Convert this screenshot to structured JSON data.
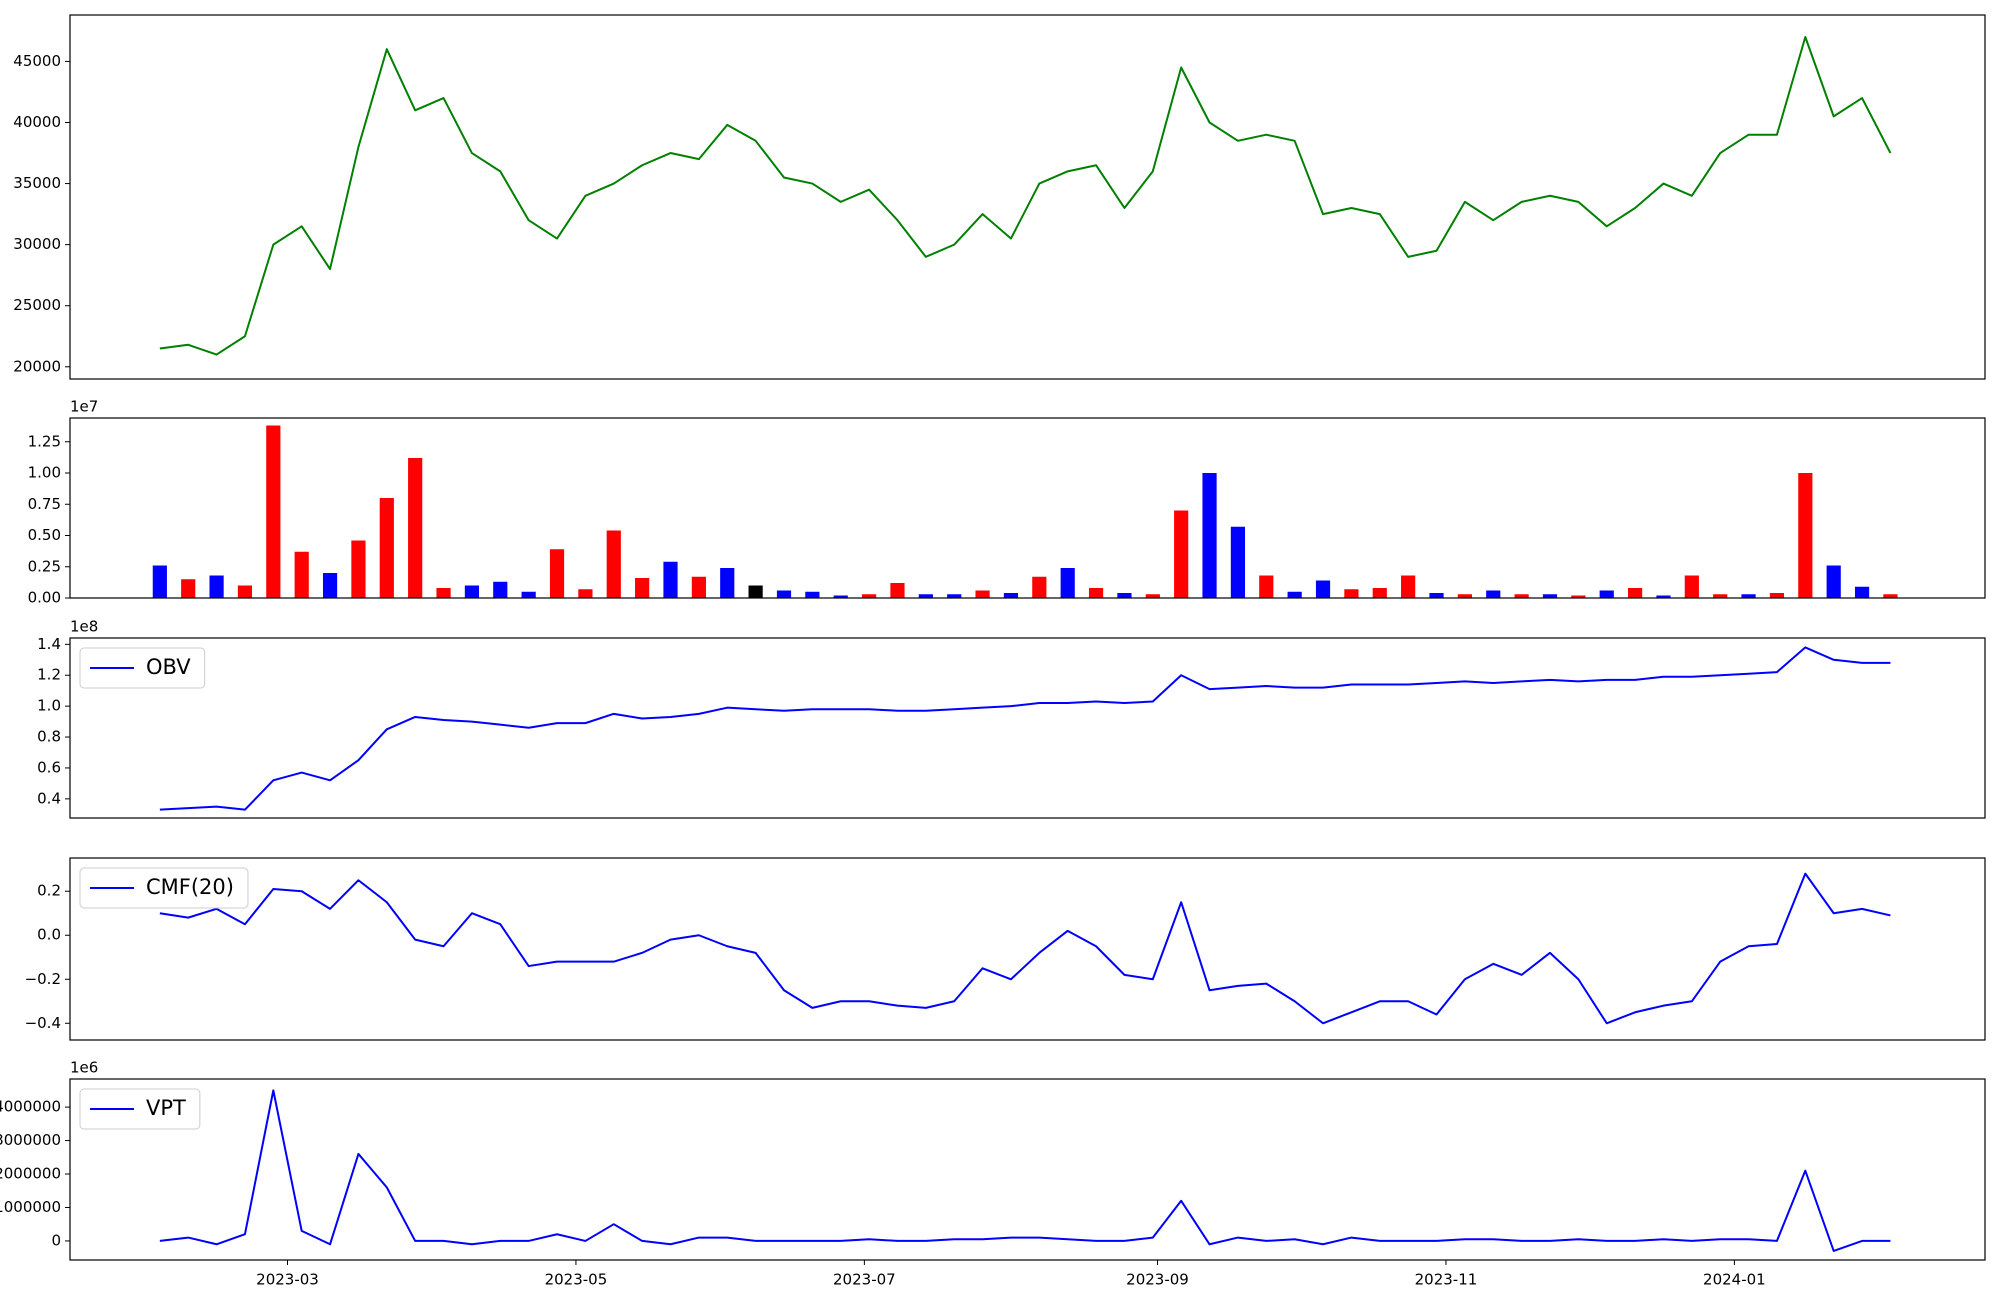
{
  "chart_data": [
    {
      "type": "line",
      "x": [
        "2023-02-02",
        "2023-02-08",
        "2023-02-14",
        "2023-02-20",
        "2023-02-26",
        "2023-03-04",
        "2023-03-10",
        "2023-03-16",
        "2023-03-22",
        "2023-03-28",
        "2023-04-03",
        "2023-04-09",
        "2023-04-15",
        "2023-04-21",
        "2023-04-27",
        "2023-05-03",
        "2023-05-09",
        "2023-05-15",
        "2023-05-21",
        "2023-05-27",
        "2023-06-02",
        "2023-06-08",
        "2023-06-14",
        "2023-06-20",
        "2023-06-26",
        "2023-07-02",
        "2023-07-08",
        "2023-07-14",
        "2023-07-20",
        "2023-07-26",
        "2023-08-01",
        "2023-08-07",
        "2023-08-13",
        "2023-08-19",
        "2023-08-25",
        "2023-08-31",
        "2023-09-06",
        "2023-09-12",
        "2023-09-18",
        "2023-09-24",
        "2023-09-30",
        "2023-10-06",
        "2023-10-12",
        "2023-10-18",
        "2023-10-24",
        "2023-10-30",
        "2023-11-05",
        "2023-11-11",
        "2023-11-17",
        "2023-11-23",
        "2023-11-29",
        "2023-12-05",
        "2023-12-11",
        "2023-12-17",
        "2023-12-23",
        "2023-12-29",
        "2024-01-04",
        "2024-01-10",
        "2024-01-16",
        "2024-01-22",
        "2024-01-28",
        "2024-02-03"
      ],
      "series": [
        {
          "color": "green",
          "values": [
            21500,
            21800,
            21000,
            22500,
            30000,
            31500,
            28000,
            38000,
            46000,
            41000,
            42000,
            37500,
            36000,
            32000,
            30500,
            34000,
            35000,
            36500,
            37500,
            37000,
            39800,
            38500,
            35500,
            35000,
            33500,
            34500,
            32000,
            29000,
            30000,
            32500,
            30500,
            35000,
            36000,
            36500,
            33000,
            36000,
            44500,
            40000,
            38500,
            39000,
            38500,
            32500,
            33000,
            32500,
            29000,
            29500,
            33500,
            32000,
            33500,
            34000,
            33500,
            31500,
            33000,
            35000,
            34000,
            37500,
            39000,
            39000,
            47000,
            40500,
            42000,
            37500
          ]
        }
      ],
      "xlim": [
        "2023-01-14",
        "2024-02-23"
      ],
      "ylim": [
        19000,
        48800
      ],
      "yticks": [
        20000,
        25000,
        30000,
        35000,
        40000,
        45000
      ]
    },
    {
      "type": "bar",
      "x": [
        "2023-02-02",
        "2023-02-08",
        "2023-02-14",
        "2023-02-20",
        "2023-02-26",
        "2023-03-04",
        "2023-03-10",
        "2023-03-16",
        "2023-03-22",
        "2023-03-28",
        "2023-04-03",
        "2023-04-09",
        "2023-04-15",
        "2023-04-21",
        "2023-04-27",
        "2023-05-03",
        "2023-05-09",
        "2023-05-15",
        "2023-05-21",
        "2023-05-27",
        "2023-06-02",
        "2023-06-08",
        "2023-06-14",
        "2023-06-20",
        "2023-06-26",
        "2023-07-02",
        "2023-07-08",
        "2023-07-14",
        "2023-07-20",
        "2023-07-26",
        "2023-08-01",
        "2023-08-07",
        "2023-08-13",
        "2023-08-19",
        "2023-08-25",
        "2023-08-31",
        "2023-09-06",
        "2023-09-12",
        "2023-09-18",
        "2023-09-24",
        "2023-09-30",
        "2023-10-06",
        "2023-10-12",
        "2023-10-18",
        "2023-10-24",
        "2023-10-30",
        "2023-11-05",
        "2023-11-11",
        "2023-11-17",
        "2023-11-23",
        "2023-11-29",
        "2023-12-05",
        "2023-12-11",
        "2023-12-17",
        "2023-12-23",
        "2023-12-29",
        "2024-01-04",
        "2024-01-10",
        "2024-01-16",
        "2024-01-22",
        "2024-01-28",
        "2024-02-03"
      ],
      "series": [
        {
          "values": [
            2600000,
            1500000,
            1800000,
            1000000,
            13800000,
            3700000,
            2000000,
            4600000,
            8000000,
            11200000,
            800000,
            1000000,
            1300000,
            500000,
            3900000,
            700000,
            5400000,
            1600000,
            2900000,
            1700000,
            2400000,
            1000000,
            600000,
            500000,
            200000,
            300000,
            1200000,
            300000,
            300000,
            600000,
            400000,
            1700000,
            2400000,
            800000,
            400000,
            300000,
            7000000,
            10000000,
            5700000,
            1800000,
            500000,
            1400000,
            700000,
            800000,
            1800000,
            400000,
            300000,
            600000,
            300000,
            300000,
            200000,
            600000,
            800000,
            200000,
            1800000,
            300000,
            300000,
            400000,
            10000000,
            2600000,
            900000,
            300000
          ],
          "colors": [
            "blue",
            "red",
            "blue",
            "red",
            "red",
            "red",
            "blue",
            "red",
            "red",
            "red",
            "red",
            "blue",
            "blue",
            "blue",
            "red",
            "red",
            "red",
            "red",
            "blue",
            "red",
            "blue",
            "black",
            "blue",
            "blue",
            "blue",
            "red",
            "red",
            "blue",
            "blue",
            "red",
            "blue",
            "red",
            "blue",
            "red",
            "blue",
            "red",
            "red",
            "blue",
            "blue",
            "red",
            "blue",
            "blue",
            "red",
            "red",
            "red",
            "blue",
            "red",
            "blue",
            "red",
            "blue",
            "red",
            "blue",
            "red",
            "blue",
            "red",
            "red",
            "blue",
            "red",
            "red",
            "blue",
            "blue",
            "red"
          ]
        }
      ],
      "xlim": [
        "2023-01-14",
        "2024-02-23"
      ],
      "ylim": [
        0,
        14400000
      ],
      "yticks": [
        {
          "value": 0,
          "label": "0.00"
        },
        {
          "value": 2500000,
          "label": "0.25"
        },
        {
          "value": 5000000,
          "label": "0.50"
        },
        {
          "value": 7500000,
          "label": "0.75"
        },
        {
          "value": 10000000,
          "label": "1.00"
        },
        {
          "value": 12500000,
          "label": "1.25"
        }
      ],
      "offset_label": "1e7"
    },
    {
      "type": "line",
      "x": [
        "2023-02-02",
        "2023-02-08",
        "2023-02-14",
        "2023-02-20",
        "2023-02-26",
        "2023-03-04",
        "2023-03-10",
        "2023-03-16",
        "2023-03-22",
        "2023-03-28",
        "2023-04-03",
        "2023-04-09",
        "2023-04-15",
        "2023-04-21",
        "2023-04-27",
        "2023-05-03",
        "2023-05-09",
        "2023-05-15",
        "2023-05-21",
        "2023-05-27",
        "2023-06-02",
        "2023-06-08",
        "2023-06-14",
        "2023-06-20",
        "2023-06-26",
        "2023-07-02",
        "2023-07-08",
        "2023-07-14",
        "2023-07-20",
        "2023-07-26",
        "2023-08-01",
        "2023-08-07",
        "2023-08-13",
        "2023-08-19",
        "2023-08-25",
        "2023-08-31",
        "2023-09-06",
        "2023-09-12",
        "2023-09-18",
        "2023-09-24",
        "2023-09-30",
        "2023-10-06",
        "2023-10-12",
        "2023-10-18",
        "2023-10-24",
        "2023-10-30",
        "2023-11-05",
        "2023-11-11",
        "2023-11-17",
        "2023-11-23",
        "2023-11-29",
        "2023-12-05",
        "2023-12-11",
        "2023-12-17",
        "2023-12-23",
        "2023-12-29",
        "2024-01-04",
        "2024-01-10",
        "2024-01-16",
        "2024-01-22",
        "2024-01-28",
        "2024-02-03"
      ],
      "series": [
        {
          "name": "OBV",
          "color": "blue",
          "values": [
            33000000,
            34000000,
            35000000,
            33000000,
            52000000,
            57000000,
            52000000,
            65000000,
            85000000,
            93000000,
            91000000,
            90000000,
            88000000,
            86000000,
            89000000,
            89000000,
            95000000,
            92000000,
            93000000,
            95000000,
            99000000,
            98000000,
            97000000,
            98000000,
            98000000,
            98000000,
            97000000,
            97000000,
            98000000,
            99000000,
            100000000,
            102000000,
            102000000,
            103000000,
            102000000,
            103000000,
            120000000,
            111000000,
            112000000,
            113000000,
            112000000,
            112000000,
            114000000,
            114000000,
            114000000,
            115000000,
            116000000,
            115000000,
            116000000,
            117000000,
            116000000,
            117000000,
            117000000,
            119000000,
            119000000,
            120000000,
            121000000,
            122000000,
            138000000,
            130000000,
            128000000,
            128000000
          ]
        }
      ],
      "xlim": [
        "2023-01-14",
        "2024-02-23"
      ],
      "ylim": [
        27600000,
        144100000
      ],
      "yticks": [
        {
          "value": 40000000,
          "label": "0.4"
        },
        {
          "value": 60000000,
          "label": "0.6"
        },
        {
          "value": 80000000,
          "label": "0.8"
        },
        {
          "value": 100000000,
          "label": "1.0"
        },
        {
          "value": 120000000,
          "label": "1.2"
        },
        {
          "value": 140000000,
          "label": "1.4"
        }
      ],
      "offset_label": "1e8",
      "legend": "upper left"
    },
    {
      "type": "line",
      "x": [
        "2023-02-02",
        "2023-02-08",
        "2023-02-14",
        "2023-02-20",
        "2023-02-26",
        "2023-03-04",
        "2023-03-10",
        "2023-03-16",
        "2023-03-22",
        "2023-03-28",
        "2023-04-03",
        "2023-04-09",
        "2023-04-15",
        "2023-04-21",
        "2023-04-27",
        "2023-05-03",
        "2023-05-09",
        "2023-05-15",
        "2023-05-21",
        "2023-05-27",
        "2023-06-02",
        "2023-06-08",
        "2023-06-14",
        "2023-06-20",
        "2023-06-26",
        "2023-07-02",
        "2023-07-08",
        "2023-07-14",
        "2023-07-20",
        "2023-07-26",
        "2023-08-01",
        "2023-08-07",
        "2023-08-13",
        "2023-08-19",
        "2023-08-25",
        "2023-08-31",
        "2023-09-06",
        "2023-09-12",
        "2023-09-18",
        "2023-09-24",
        "2023-09-30",
        "2023-10-06",
        "2023-10-12",
        "2023-10-18",
        "2023-10-24",
        "2023-10-30",
        "2023-11-05",
        "2023-11-11",
        "2023-11-17",
        "2023-11-23",
        "2023-11-29",
        "2023-12-05",
        "2023-12-11",
        "2023-12-17",
        "2023-12-23",
        "2023-12-29",
        "2024-01-04",
        "2024-01-10",
        "2024-01-16",
        "2024-01-22",
        "2024-01-28",
        "2024-02-03"
      ],
      "series": [
        {
          "name": "CMF(20)",
          "color": "blue",
          "values": [
            0.1,
            0.08,
            0.12,
            0.05,
            0.21,
            0.2,
            0.12,
            0.25,
            0.15,
            -0.02,
            -0.05,
            0.1,
            0.05,
            -0.14,
            -0.12,
            -0.12,
            -0.12,
            -0.08,
            -0.02,
            0.0,
            -0.05,
            -0.08,
            -0.25,
            -0.33,
            -0.3,
            -0.3,
            -0.32,
            -0.33,
            -0.3,
            -0.15,
            -0.2,
            -0.08,
            0.02,
            -0.05,
            -0.18,
            -0.2,
            0.15,
            -0.25,
            -0.23,
            -0.22,
            -0.3,
            -0.4,
            -0.35,
            -0.3,
            -0.3,
            -0.36,
            -0.2,
            -0.13,
            -0.18,
            -0.08,
            -0.2,
            -0.4,
            -0.35,
            -0.32,
            -0.3,
            -0.12,
            -0.05,
            -0.04,
            0.28,
            0.1,
            0.12,
            0.09
          ]
        }
      ],
      "xlim": [
        "2023-01-14",
        "2024-02-23"
      ],
      "ylim": [
        -0.476,
        0.351
      ],
      "yticks": [
        {
          "value": -0.4,
          "label": "−0.4"
        },
        {
          "value": -0.2,
          "label": "−0.2"
        },
        {
          "value": 0,
          "label": "0.0"
        },
        0.2
      ],
      "legend": "upper left"
    },
    {
      "type": "line",
      "x": [
        "2023-02-02",
        "2023-02-08",
        "2023-02-14",
        "2023-02-20",
        "2023-02-26",
        "2023-03-04",
        "2023-03-10",
        "2023-03-16",
        "2023-03-22",
        "2023-03-28",
        "2023-04-03",
        "2023-04-09",
        "2023-04-15",
        "2023-04-21",
        "2023-04-27",
        "2023-05-03",
        "2023-05-09",
        "2023-05-15",
        "2023-05-21",
        "2023-05-27",
        "2023-06-02",
        "2023-06-08",
        "2023-06-14",
        "2023-06-20",
        "2023-06-26",
        "2023-07-02",
        "2023-07-08",
        "2023-07-14",
        "2023-07-20",
        "2023-07-26",
        "2023-08-01",
        "2023-08-07",
        "2023-08-13",
        "2023-08-19",
        "2023-08-25",
        "2023-08-31",
        "2023-09-06",
        "2023-09-12",
        "2023-09-18",
        "2023-09-24",
        "2023-09-30",
        "2023-10-06",
        "2023-10-12",
        "2023-10-18",
        "2023-10-24",
        "2023-10-30",
        "2023-11-05",
        "2023-11-11",
        "2023-11-17",
        "2023-11-23",
        "2023-11-29",
        "2023-12-05",
        "2023-12-11",
        "2023-12-17",
        "2023-12-23",
        "2023-12-29",
        "2024-01-04",
        "2024-01-10",
        "2024-01-16",
        "2024-01-22",
        "2024-01-28",
        "2024-02-03"
      ],
      "series": [
        {
          "name": "VPT",
          "color": "blue",
          "values": [
            0,
            100000,
            -100000,
            200000,
            4500000,
            300000,
            -100000,
            2600000,
            1600000,
            0,
            0,
            -100000,
            0,
            0,
            200000,
            0,
            500000,
            0,
            -100000,
            100000,
            100000,
            0,
            0,
            0,
            0,
            50000,
            0,
            0,
            50000,
            50000,
            100000,
            100000,
            50000,
            0,
            0,
            100000,
            1200000,
            -100000,
            100000,
            0,
            50000,
            -100000,
            100000,
            0,
            0,
            0,
            50000,
            50000,
            0,
            0,
            50000,
            0,
            0,
            50000,
            0,
            50000,
            50000,
            0,
            2100000,
            -300000,
            0,
            0
          ]
        }
      ],
      "xlim": [
        "2023-01-14",
        "2024-02-23"
      ],
      "ylim": [
        -570000,
        4840000
      ],
      "yticks": [
        0,
        1000000,
        2000000,
        3000000,
        4000000
      ],
      "ytick_labels_scaled": null,
      "offset_label": "1e6",
      "legend": "upper left",
      "xticks": [
        {
          "value": "2023-03-01",
          "label": "2023-03"
        },
        {
          "value": "2023-05-01",
          "label": "2023-05"
        },
        {
          "value": "2023-07-01",
          "label": "2023-07"
        },
        {
          "value": "2023-09-01",
          "label": "2023-09"
        },
        {
          "value": "2023-11-01",
          "label": "2023-11"
        },
        {
          "value": "2024-01-01",
          "label": "2024-01"
        }
      ]
    }
  ]
}
